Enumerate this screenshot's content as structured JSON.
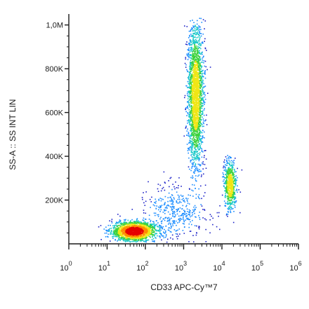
{
  "chart_data": {
    "type": "scatter",
    "subtype": "flow-cytometry density dot plot",
    "xlabel": "CD33 APC-Cy™7",
    "ylabel": "SS-A :: SS INT LIN",
    "x_scale": "log",
    "xlim": [
      1,
      1000000
    ],
    "ylim": [
      0,
      1050000
    ],
    "x_ticks": [
      {
        "base": "10",
        "exp": "0"
      },
      {
        "base": "10",
        "exp": "1"
      },
      {
        "base": "10",
        "exp": "2"
      },
      {
        "base": "10",
        "exp": "3"
      },
      {
        "base": "10",
        "exp": "4"
      },
      {
        "base": "10",
        "exp": "5"
      },
      {
        "base": "10",
        "exp": "6"
      }
    ],
    "y_ticks": [
      {
        "value": 200000,
        "label": "200K"
      },
      {
        "value": 400000,
        "label": "400K"
      },
      {
        "value": 600000,
        "label": "600K"
      },
      {
        "value": 800000,
        "label": "800K"
      },
      {
        "value": 1000000,
        "label": "1,0M"
      }
    ],
    "grid": false,
    "legend": "none",
    "density_colors": [
      "#1e24c8",
      "#1a8cff",
      "#18c8c8",
      "#3cd23c",
      "#f0e614",
      "#ff8c00",
      "#e60000"
    ],
    "populations": [
      {
        "x_center": 50,
        "y_center": 60000,
        "x_log_spread": 0.28,
        "y_spread": 22000,
        "weight": 0.36
      },
      {
        "x_center": 2000,
        "y_center": 680000,
        "x_log_spread": 0.1,
        "y_spread": 160000,
        "weight": 0.44
      },
      {
        "x_center": 16000,
        "y_center": 270000,
        "x_log_spread": 0.08,
        "y_spread": 55000,
        "weight": 0.12
      },
      {
        "x_center": 600,
        "y_center": 150000,
        "x_log_spread": 0.4,
        "y_spread": 60000,
        "weight": 0.08
      }
    ]
  }
}
